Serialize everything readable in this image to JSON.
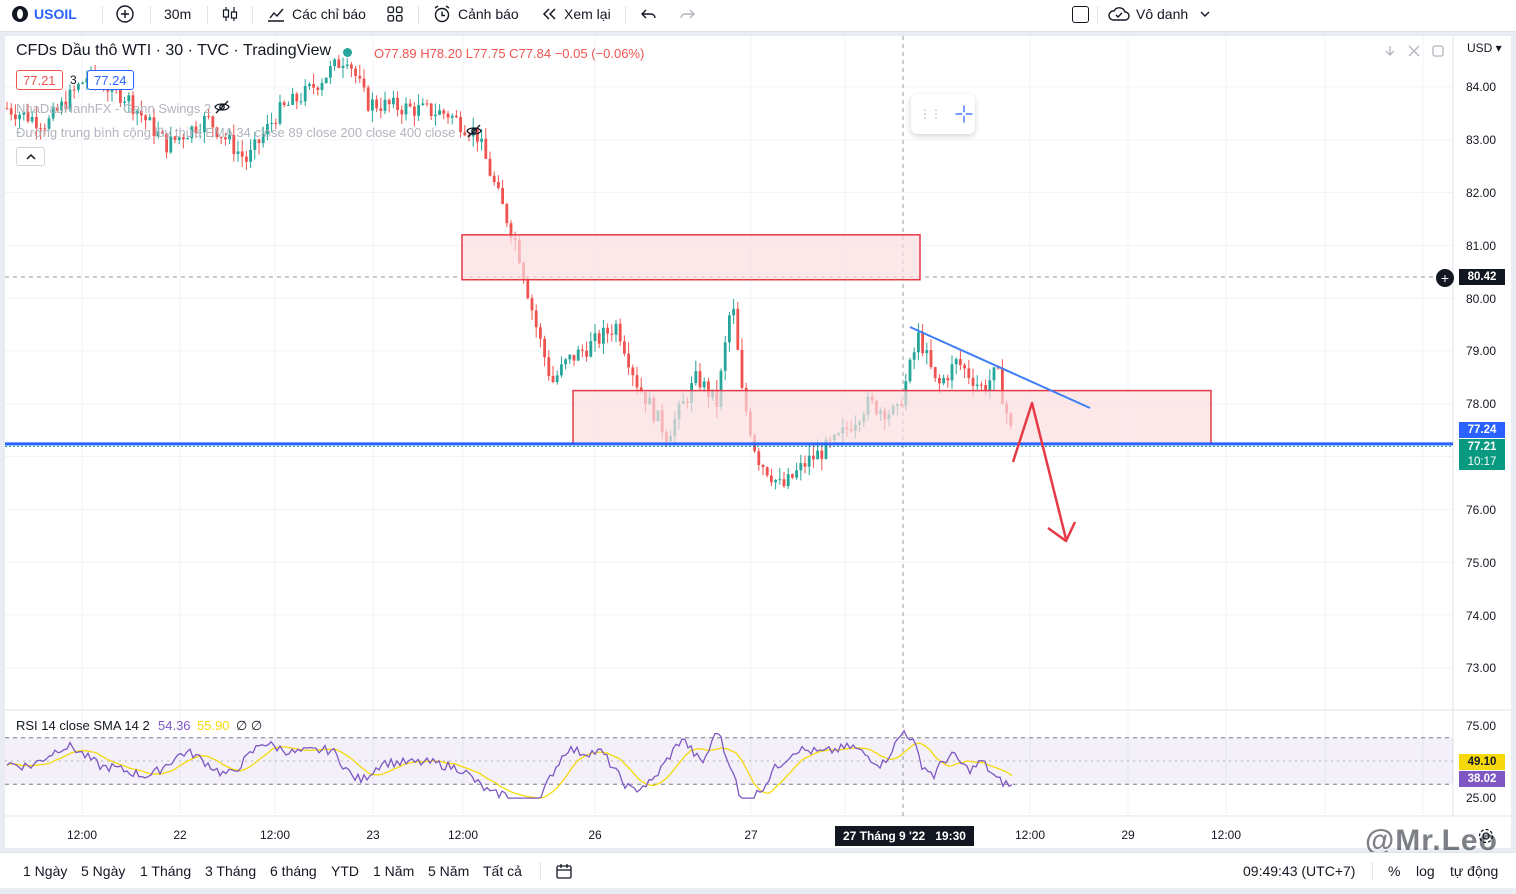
{
  "toolbar": {
    "symbol": "USOIL",
    "interval": "30m",
    "indicators_label": "Các chỉ báo",
    "alert_label": "Cảnh báo",
    "replay_label": "Xem lại",
    "layout_name": "Vô danh"
  },
  "legend": {
    "title": "CFDs Dầu thô WTI · 30 · TVC · TradingView",
    "ohlc": "O77.89 H78.20 L77.75 C77.84 −0.05 (−0.06%)",
    "bid": "77.21",
    "spread": "3",
    "ask": "77.24",
    "indicator1": "NhaDauHanhFX - Gann Swings 2",
    "indicator2": "Đường trung bình cộng lũy thừa EMA 34 close 89 close 200 close 400 close"
  },
  "rsi_legend": {
    "name": "RSI 14 close SMA 14 2",
    "value1": "54.36",
    "value2": "55.90",
    "extra": "∅ ∅"
  },
  "price_axis": {
    "currency": "USD",
    "labels": [
      "84.00",
      "83.00",
      "82.00",
      "81.00",
      "80.00",
      "79.00",
      "78.00",
      "76.00",
      "75.00",
      "74.00",
      "73.00"
    ],
    "crosshair_price": "80.42",
    "ask_price": "77.24",
    "bid_price": "77.21",
    "countdown": "10:17"
  },
  "rsi_axis": {
    "labels": [
      "75.00",
      "25.00"
    ],
    "sma_value": "49.10",
    "rsi_value": "38.02"
  },
  "time_axis": {
    "labels": [
      "12:00",
      "22",
      "12:00",
      "23",
      "12:00",
      "26",
      "27",
      "12:00",
      "29",
      "12:00"
    ],
    "crosshair_time": "27 Tháng 9 '22   19:30"
  },
  "ranges": [
    "1 Ngày",
    "5 Ngày",
    "1 Tháng",
    "3 Tháng",
    "6 tháng",
    "YTD",
    "1 Năm",
    "5 Năm",
    "Tất cả"
  ],
  "bottom_right": {
    "clock": "09:49:43 (UTC+7)",
    "percent": "%",
    "log": "log",
    "auto": "tự động"
  },
  "watermark": "@Mr.Leo",
  "colors": {
    "up": "#26a69a",
    "down": "#ef5350",
    "zone_fill": "#fbdde0",
    "zone_border": "#e53946",
    "support_line": "#2962ff",
    "trendline": "#3d7ff5",
    "arrow": "#e53946",
    "rsi_line": "#7e57c2",
    "rsi_sma": "#f5d90a"
  },
  "chart_data": {
    "type": "candlestick",
    "symbol": "USOIL",
    "timeframe": "30m",
    "ylim": [
      72.5,
      85.0
    ],
    "support_level": 77.24,
    "zones": [
      {
        "name": "resistance",
        "from": 80.35,
        "to": 81.2
      },
      {
        "name": "support",
        "from": 77.25,
        "to": 78.25
      }
    ],
    "approx_price_path": [
      {
        "t": 0,
        "p": 83.6
      },
      {
        "t": 40,
        "p": 83.3
      },
      {
        "t": 80,
        "p": 84.2
      },
      {
        "t": 120,
        "p": 83.8
      },
      {
        "t": 160,
        "p": 82.9
      },
      {
        "t": 200,
        "p": 83.4
      },
      {
        "t": 240,
        "p": 82.6
      },
      {
        "t": 270,
        "p": 83.5
      },
      {
        "t": 300,
        "p": 83.9
      },
      {
        "t": 340,
        "p": 84.6
      },
      {
        "t": 360,
        "p": 83.7
      },
      {
        "t": 400,
        "p": 83.6
      },
      {
        "t": 440,
        "p": 83.5
      },
      {
        "t": 470,
        "p": 83.1
      },
      {
        "t": 490,
        "p": 82.0
      },
      {
        "t": 510,
        "p": 81.0
      },
      {
        "t": 530,
        "p": 79.4
      },
      {
        "t": 545,
        "p": 78.4
      },
      {
        "t": 560,
        "p": 78.8
      },
      {
        "t": 590,
        "p": 79.2
      },
      {
        "t": 610,
        "p": 79.5
      },
      {
        "t": 630,
        "p": 78.4
      },
      {
        "t": 660,
        "p": 77.4
      },
      {
        "t": 690,
        "p": 78.5
      },
      {
        "t": 710,
        "p": 78.0
      },
      {
        "t": 725,
        "p": 80.0
      },
      {
        "t": 735,
        "p": 78.2
      },
      {
        "t": 750,
        "p": 77.0
      },
      {
        "t": 775,
        "p": 76.4
      },
      {
        "t": 800,
        "p": 76.9
      },
      {
        "t": 830,
        "p": 77.3
      },
      {
        "t": 860,
        "p": 78.0
      },
      {
        "t": 890,
        "p": 77.8
      },
      {
        "t": 912,
        "p": 79.3
      },
      {
        "t": 930,
        "p": 78.3
      },
      {
        "t": 950,
        "p": 78.8
      },
      {
        "t": 975,
        "p": 78.3
      },
      {
        "t": 990,
        "p": 78.6
      },
      {
        "t": 1005,
        "p": 77.4
      }
    ]
  }
}
